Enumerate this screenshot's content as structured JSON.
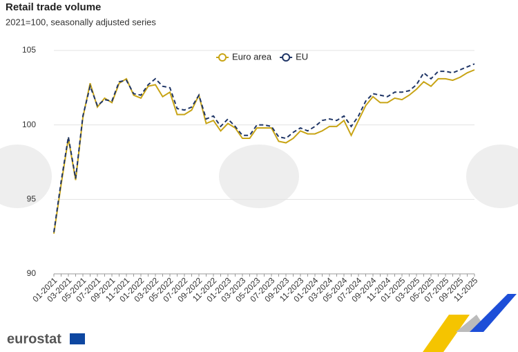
{
  "chart_data": {
    "type": "line",
    "title": "Retail trade volume",
    "subtitle": "2021=100, seasonally adjusted series",
    "categories": [
      "01-2021",
      null,
      "03-2021",
      null,
      "05-2021",
      null,
      "07-2021",
      null,
      "09-2021",
      null,
      "11-2021",
      null,
      "01-2022",
      null,
      "03-2022",
      null,
      "05-2022",
      null,
      "07-2022",
      null,
      "09-2022",
      null,
      "11-2022",
      null,
      "01-2023",
      null,
      "03-2023",
      null,
      "05-2023",
      null,
      "07-2023",
      null,
      "09-2023",
      null,
      "11-2023",
      null,
      "01-2024",
      null,
      "03-2024",
      null,
      "05-2024",
      null,
      "07-2024",
      null,
      "09-2024",
      null,
      "11-2024",
      null,
      "01-2025",
      null,
      "03-2025",
      null,
      "05-2025",
      null,
      "07-2025",
      null,
      "09-2025",
      null,
      "11-2025"
    ],
    "series": [
      {
        "name": "Euro area",
        "color": "#c8a415",
        "dashed": false,
        "values": [
          92.7,
          96,
          99.1,
          96.3,
          100.5,
          102.8,
          101.2,
          101.8,
          101.5,
          102.8,
          103.1,
          102,
          101.8,
          102.6,
          102.7,
          101.9,
          102.2,
          100.7,
          100.7,
          101,
          102,
          100.1,
          100.3,
          99.6,
          100.1,
          99.8,
          99.1,
          99.1,
          99.8,
          99.8,
          99.8,
          98.9,
          98.8,
          99.1,
          99.6,
          99.4,
          99.4,
          99.6,
          99.9,
          99.9,
          100.3,
          99.3,
          100.3,
          101.3,
          101.9,
          101.5,
          101.5,
          101.8,
          101.7,
          102,
          102.4,
          102.9,
          102.6,
          103.1,
          103.1,
          103,
          103.2,
          103.5,
          103.7
        ]
      },
      {
        "name": "EU",
        "color": "#1f3566",
        "dashed": true,
        "values": [
          92.8,
          96.2,
          99.2,
          96.4,
          100.6,
          102.6,
          101.3,
          101.7,
          101.6,
          102.9,
          103,
          102.1,
          102,
          102.7,
          103.1,
          102.6,
          102.5,
          101.1,
          101,
          101.2,
          102,
          100.4,
          100.6,
          99.9,
          100.4,
          99.9,
          99.3,
          99.3,
          100,
          100,
          99.9,
          99.2,
          99.1,
          99.5,
          99.8,
          99.6,
          99.9,
          100.3,
          100.4,
          100.3,
          100.6,
          99.9,
          100.6,
          101.6,
          102.1,
          102,
          101.9,
          102.2,
          102.2,
          102.3,
          102.7,
          103.5,
          103.1,
          103.6,
          103.6,
          103.5,
          103.7,
          103.9,
          104.1
        ]
      }
    ],
    "ylim": [
      90,
      105
    ],
    "yticks": [
      90,
      95,
      100,
      105
    ],
    "grid": true,
    "legend": "top"
  },
  "logo": "eurostat"
}
